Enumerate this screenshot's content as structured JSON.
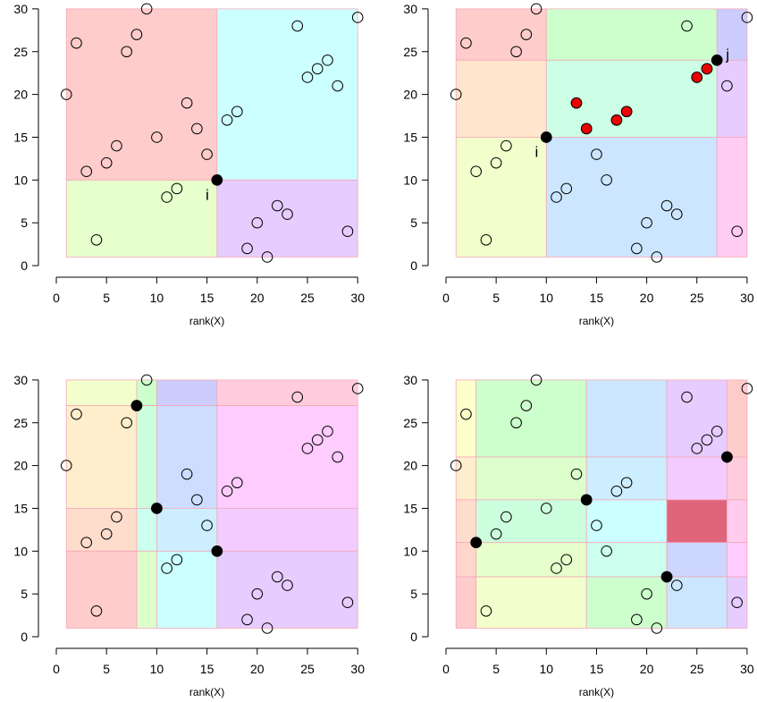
{
  "chart_data": [
    {
      "type": "scatter",
      "xlabel": "rank(X)",
      "xlim": [
        0,
        30
      ],
      "ylim": [
        0,
        30
      ],
      "xticks": [
        0,
        5,
        10,
        15,
        20,
        25,
        30
      ],
      "yticks": [
        0,
        5,
        10,
        15,
        20,
        25,
        30
      ],
      "points": [
        [
          1,
          20
        ],
        [
          2,
          26
        ],
        [
          3,
          11
        ],
        [
          4,
          3
        ],
        [
          5,
          12
        ],
        [
          6,
          14
        ],
        [
          7,
          25
        ],
        [
          8,
          27
        ],
        [
          9,
          30
        ],
        [
          10,
          15
        ],
        [
          11,
          8
        ],
        [
          12,
          9
        ],
        [
          13,
          19
        ],
        [
          14,
          16
        ],
        [
          15,
          13
        ],
        [
          16,
          10
        ],
        [
          17,
          17
        ],
        [
          18,
          18
        ],
        [
          19,
          2
        ],
        [
          20,
          5
        ],
        [
          21,
          1
        ],
        [
          22,
          7
        ],
        [
          23,
          6
        ],
        [
          24,
          28
        ],
        [
          25,
          22
        ],
        [
          26,
          23
        ],
        [
          27,
          24
        ],
        [
          28,
          21
        ],
        [
          29,
          4
        ],
        [
          30,
          29
        ]
      ],
      "regions": [
        {
          "x": [
            1,
            16
          ],
          "y": [
            10,
            30
          ],
          "color": "#ffcccc"
        },
        {
          "x": [
            16,
            30
          ],
          "y": [
            10,
            30
          ],
          "color": "#ccffff"
        },
        {
          "x": [
            1,
            16
          ],
          "y": [
            1,
            10
          ],
          "color": "#e6ffcc"
        },
        {
          "x": [
            16,
            30
          ],
          "y": [
            1,
            10
          ],
          "color": "#e6ccff"
        }
      ],
      "filled_points": [
        {
          "x": 16,
          "y": 10,
          "color": "#000000"
        }
      ],
      "point_labels": [
        {
          "text": "i",
          "x": 16,
          "y": 10,
          "side": "below-left"
        }
      ]
    },
    {
      "type": "scatter",
      "xlabel": "rank(X)",
      "xlim": [
        0,
        30
      ],
      "ylim": [
        0,
        30
      ],
      "xticks": [
        0,
        5,
        10,
        15,
        20,
        25,
        30
      ],
      "yticks": [
        0,
        5,
        10,
        15,
        20,
        25,
        30
      ],
      "points": [
        [
          1,
          20
        ],
        [
          2,
          26
        ],
        [
          3,
          11
        ],
        [
          4,
          3
        ],
        [
          5,
          12
        ],
        [
          6,
          14
        ],
        [
          7,
          25
        ],
        [
          8,
          27
        ],
        [
          9,
          30
        ],
        [
          10,
          15
        ],
        [
          11,
          8
        ],
        [
          12,
          9
        ],
        [
          13,
          19
        ],
        [
          14,
          16
        ],
        [
          15,
          13
        ],
        [
          16,
          10
        ],
        [
          17,
          17
        ],
        [
          18,
          18
        ],
        [
          19,
          2
        ],
        [
          20,
          5
        ],
        [
          21,
          1
        ],
        [
          22,
          7
        ],
        [
          23,
          6
        ],
        [
          24,
          28
        ],
        [
          25,
          22
        ],
        [
          26,
          23
        ],
        [
          27,
          24
        ],
        [
          28,
          21
        ],
        [
          29,
          4
        ],
        [
          30,
          29
        ]
      ],
      "regions": [
        {
          "x": [
            1,
            10
          ],
          "y": [
            24,
            30
          ],
          "color": "#ffcccc"
        },
        {
          "x": [
            10,
            27
          ],
          "y": [
            24,
            30
          ],
          "color": "#ccffcc"
        },
        {
          "x": [
            27,
            30
          ],
          "y": [
            24,
            30
          ],
          "color": "#ccccff"
        },
        {
          "x": [
            1,
            10
          ],
          "y": [
            15,
            24
          ],
          "color": "#ffe6cc"
        },
        {
          "x": [
            10,
            27
          ],
          "y": [
            15,
            24
          ],
          "color": "#ccffe6"
        },
        {
          "x": [
            27,
            30
          ],
          "y": [
            15,
            24
          ],
          "color": "#e6ccff"
        },
        {
          "x": [
            1,
            10
          ],
          "y": [
            1,
            15
          ],
          "color": "#f2ffcc"
        },
        {
          "x": [
            10,
            27
          ],
          "y": [
            1,
            15
          ],
          "color": "#cce6ff"
        },
        {
          "x": [
            27,
            30
          ],
          "y": [
            1,
            15
          ],
          "color": "#ffccf2"
        }
      ],
      "filled_points": [
        {
          "x": 10,
          "y": 15,
          "color": "#000000"
        },
        {
          "x": 27,
          "y": 24,
          "color": "#000000"
        },
        {
          "x": 13,
          "y": 19,
          "color": "#ee0000"
        },
        {
          "x": 14,
          "y": 16,
          "color": "#ee0000"
        },
        {
          "x": 17,
          "y": 17,
          "color": "#ee0000"
        },
        {
          "x": 18,
          "y": 18,
          "color": "#ee0000"
        },
        {
          "x": 25,
          "y": 22,
          "color": "#ee0000"
        },
        {
          "x": 26,
          "y": 23,
          "color": "#ee0000"
        }
      ],
      "point_labels": [
        {
          "text": "i",
          "x": 10,
          "y": 15,
          "side": "below-left"
        },
        {
          "text": "j",
          "x": 27,
          "y": 24,
          "side": "right"
        }
      ]
    },
    {
      "type": "scatter",
      "xlabel": "rank(X)",
      "xlim": [
        0,
        30
      ],
      "ylim": [
        0,
        30
      ],
      "xticks": [
        0,
        5,
        10,
        15,
        20,
        25,
        30
      ],
      "yticks": [
        0,
        5,
        10,
        15,
        20,
        25,
        30
      ],
      "points": [
        [
          1,
          20
        ],
        [
          2,
          26
        ],
        [
          3,
          11
        ],
        [
          4,
          3
        ],
        [
          5,
          12
        ],
        [
          6,
          14
        ],
        [
          7,
          25
        ],
        [
          8,
          27
        ],
        [
          9,
          30
        ],
        [
          10,
          15
        ],
        [
          11,
          8
        ],
        [
          12,
          9
        ],
        [
          13,
          19
        ],
        [
          14,
          16
        ],
        [
          15,
          13
        ],
        [
          16,
          10
        ],
        [
          17,
          17
        ],
        [
          18,
          18
        ],
        [
          19,
          2
        ],
        [
          20,
          5
        ],
        [
          21,
          1
        ],
        [
          22,
          7
        ],
        [
          23,
          6
        ],
        [
          24,
          28
        ],
        [
          25,
          22
        ],
        [
          26,
          23
        ],
        [
          27,
          24
        ],
        [
          28,
          21
        ],
        [
          29,
          4
        ],
        [
          30,
          29
        ]
      ],
      "regions": [
        {
          "x": [
            1,
            8
          ],
          "y": [
            27,
            30
          ],
          "color": "#f2ffcc"
        },
        {
          "x": [
            8,
            10
          ],
          "y": [
            27,
            30
          ],
          "color": "#ccffcc"
        },
        {
          "x": [
            10,
            16
          ],
          "y": [
            27,
            30
          ],
          "color": "#ccccff"
        },
        {
          "x": [
            16,
            30
          ],
          "y": [
            27,
            30
          ],
          "color": "#ffccdd"
        },
        {
          "x": [
            1,
            8
          ],
          "y": [
            15,
            27
          ],
          "color": "#ffeecc"
        },
        {
          "x": [
            8,
            10
          ],
          "y": [
            15,
            27
          ],
          "color": "#ccffdd"
        },
        {
          "x": [
            10,
            16
          ],
          "y": [
            15,
            27
          ],
          "color": "#ccddff"
        },
        {
          "x": [
            16,
            30
          ],
          "y": [
            15,
            27
          ],
          "color": "#ffccff"
        },
        {
          "x": [
            1,
            8
          ],
          "y": [
            10,
            15
          ],
          "color": "#ffddcc"
        },
        {
          "x": [
            8,
            10
          ],
          "y": [
            10,
            15
          ],
          "color": "#ccffee"
        },
        {
          "x": [
            10,
            16
          ],
          "y": [
            10,
            15
          ],
          "color": "#cceeff"
        },
        {
          "x": [
            16,
            30
          ],
          "y": [
            10,
            15
          ],
          "color": "#f2ccff"
        },
        {
          "x": [
            1,
            8
          ],
          "y": [
            1,
            10
          ],
          "color": "#ffcccc"
        },
        {
          "x": [
            8,
            10
          ],
          "y": [
            1,
            10
          ],
          "color": "#ddffcc"
        },
        {
          "x": [
            10,
            16
          ],
          "y": [
            1,
            10
          ],
          "color": "#ccffff"
        },
        {
          "x": [
            16,
            30
          ],
          "y": [
            1,
            10
          ],
          "color": "#e6ccff"
        }
      ],
      "filled_points": [
        {
          "x": 8,
          "y": 27,
          "color": "#000000"
        },
        {
          "x": 10,
          "y": 15,
          "color": "#000000"
        },
        {
          "x": 16,
          "y": 10,
          "color": "#000000"
        }
      ],
      "point_labels": []
    },
    {
      "type": "scatter",
      "xlabel": "rank(X)",
      "xlim": [
        0,
        30
      ],
      "ylim": [
        0,
        30
      ],
      "xticks": [
        0,
        5,
        10,
        15,
        20,
        25,
        30
      ],
      "yticks": [
        0,
        5,
        10,
        15,
        20,
        25,
        30
      ],
      "points": [
        [
          1,
          20
        ],
        [
          2,
          26
        ],
        [
          3,
          11
        ],
        [
          4,
          3
        ],
        [
          5,
          12
        ],
        [
          6,
          14
        ],
        [
          7,
          25
        ],
        [
          8,
          27
        ],
        [
          9,
          30
        ],
        [
          10,
          15
        ],
        [
          11,
          8
        ],
        [
          12,
          9
        ],
        [
          13,
          19
        ],
        [
          14,
          16
        ],
        [
          15,
          13
        ],
        [
          16,
          10
        ],
        [
          17,
          17
        ],
        [
          18,
          18
        ],
        [
          19,
          2
        ],
        [
          20,
          5
        ],
        [
          21,
          1
        ],
        [
          22,
          7
        ],
        [
          23,
          6
        ],
        [
          24,
          28
        ],
        [
          25,
          22
        ],
        [
          26,
          23
        ],
        [
          27,
          24
        ],
        [
          28,
          21
        ],
        [
          29,
          4
        ],
        [
          30,
          29
        ]
      ],
      "regions": [
        {
          "x": [
            1,
            3
          ],
          "y": [
            21,
            30
          ],
          "color": "#ffffcc"
        },
        {
          "x": [
            3,
            14
          ],
          "y": [
            21,
            30
          ],
          "color": "#ccffcc"
        },
        {
          "x": [
            14,
            22
          ],
          "y": [
            21,
            30
          ],
          "color": "#cce6ff"
        },
        {
          "x": [
            22,
            28
          ],
          "y": [
            21,
            30
          ],
          "color": "#e6ccff"
        },
        {
          "x": [
            28,
            30
          ],
          "y": [
            21,
            30
          ],
          "color": "#ffcccc"
        },
        {
          "x": [
            1,
            3
          ],
          "y": [
            16,
            21
          ],
          "color": "#ffeecc"
        },
        {
          "x": [
            3,
            14
          ],
          "y": [
            16,
            21
          ],
          "color": "#ddffcc"
        },
        {
          "x": [
            14,
            22
          ],
          "y": [
            16,
            21
          ],
          "color": "#cceeff"
        },
        {
          "x": [
            22,
            28
          ],
          "y": [
            16,
            21
          ],
          "color": "#f2ccff"
        },
        {
          "x": [
            28,
            30
          ],
          "y": [
            16,
            21
          ],
          "color": "#ffccdd"
        },
        {
          "x": [
            1,
            3
          ],
          "y": [
            11,
            16
          ],
          "color": "#ffddcc"
        },
        {
          "x": [
            3,
            14
          ],
          "y": [
            11,
            16
          ],
          "color": "#ccffdd"
        },
        {
          "x": [
            14,
            22
          ],
          "y": [
            11,
            16
          ],
          "color": "#ccffff"
        },
        {
          "x": [
            22,
            28
          ],
          "y": [
            11,
            16
          ],
          "color": "#e0647a"
        },
        {
          "x": [
            28,
            30
          ],
          "y": [
            11,
            16
          ],
          "color": "#ffccee"
        },
        {
          "x": [
            1,
            3
          ],
          "y": [
            7,
            11
          ],
          "color": "#ffd6cc"
        },
        {
          "x": [
            3,
            14
          ],
          "y": [
            7,
            11
          ],
          "color": "#e6ffcc"
        },
        {
          "x": [
            14,
            22
          ],
          "y": [
            7,
            11
          ],
          "color": "#ccffee"
        },
        {
          "x": [
            22,
            28
          ],
          "y": [
            7,
            11
          ],
          "color": "#ccd6ff"
        },
        {
          "x": [
            28,
            30
          ],
          "y": [
            7,
            11
          ],
          "color": "#ffccff"
        },
        {
          "x": [
            1,
            3
          ],
          "y": [
            1,
            7
          ],
          "color": "#ffcccc"
        },
        {
          "x": [
            3,
            14
          ],
          "y": [
            1,
            7
          ],
          "color": "#f2ffcc"
        },
        {
          "x": [
            14,
            22
          ],
          "y": [
            1,
            7
          ],
          "color": "#ccffcc"
        },
        {
          "x": [
            22,
            28
          ],
          "y": [
            1,
            7
          ],
          "color": "#cce6ff"
        },
        {
          "x": [
            28,
            30
          ],
          "y": [
            1,
            7
          ],
          "color": "#e6ccff"
        }
      ],
      "filled_points": [
        {
          "x": 3,
          "y": 11,
          "color": "#000000"
        },
        {
          "x": 14,
          "y": 16,
          "color": "#000000"
        },
        {
          "x": 22,
          "y": 7,
          "color": "#000000"
        },
        {
          "x": 28,
          "y": 21,
          "color": "#000000"
        }
      ],
      "point_labels": []
    }
  ]
}
